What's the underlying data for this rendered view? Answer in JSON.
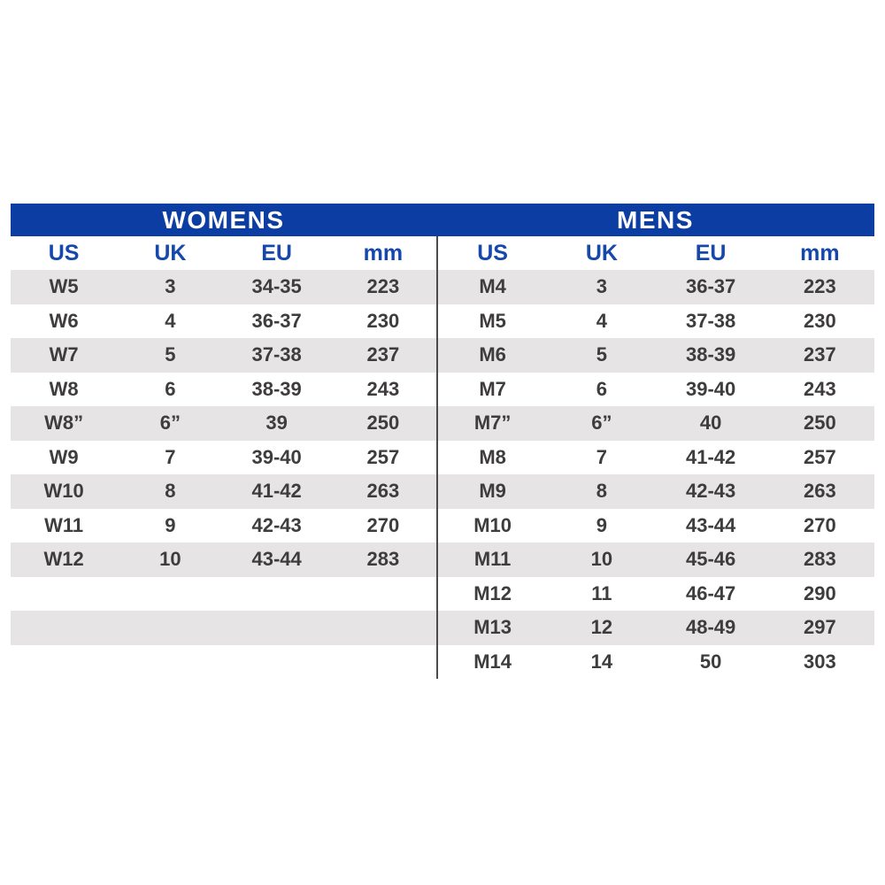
{
  "colors": {
    "background": "#ffffff",
    "header_bar": "#0c3da3",
    "header_text": "#ffffff",
    "column_header_text": "#1547ad",
    "row_text": "#3e3c3d",
    "stripe": "#e6e4e5",
    "divider": "#4b4b4d"
  },
  "chart_data": [
    {
      "type": "table",
      "title": "WOMENS",
      "columns": [
        "US",
        "UK",
        "EU",
        "mm"
      ],
      "rows": [
        [
          "W5",
          "3",
          "34-35",
          "223"
        ],
        [
          "W6",
          "4",
          "36-37",
          "230"
        ],
        [
          "W7",
          "5",
          "37-38",
          "237"
        ],
        [
          "W8",
          "6",
          "38-39",
          "243"
        ],
        [
          "W8”",
          "6”",
          "39",
          "250"
        ],
        [
          "W9",
          "7",
          "39-40",
          "257"
        ],
        [
          "W10",
          "8",
          "41-42",
          "263"
        ],
        [
          "W11",
          "9",
          "42-43",
          "270"
        ],
        [
          "W12",
          "10",
          "43-44",
          "283"
        ],
        [
          "",
          "",
          "",
          ""
        ],
        [
          "",
          "",
          "",
          ""
        ],
        [
          "",
          "",
          "",
          ""
        ]
      ]
    },
    {
      "type": "table",
      "title": "MENS",
      "columns": [
        "US",
        "UK",
        "EU",
        "mm"
      ],
      "rows": [
        [
          "M4",
          "3",
          "36-37",
          "223"
        ],
        [
          "M5",
          "4",
          "37-38",
          "230"
        ],
        [
          "M6",
          "5",
          "38-39",
          "237"
        ],
        [
          "M7",
          "6",
          "39-40",
          "243"
        ],
        [
          "M7”",
          "6”",
          "40",
          "250"
        ],
        [
          "M8",
          "7",
          "41-42",
          "257"
        ],
        [
          "M9",
          "8",
          "42-43",
          "263"
        ],
        [
          "M10",
          "9",
          "43-44",
          "270"
        ],
        [
          "M11",
          "10",
          "45-46",
          "283"
        ],
        [
          "M12",
          "11",
          "46-47",
          "290"
        ],
        [
          "M13",
          "12",
          "48-49",
          "297"
        ],
        [
          "M14",
          "14",
          "50",
          "303"
        ]
      ]
    }
  ]
}
